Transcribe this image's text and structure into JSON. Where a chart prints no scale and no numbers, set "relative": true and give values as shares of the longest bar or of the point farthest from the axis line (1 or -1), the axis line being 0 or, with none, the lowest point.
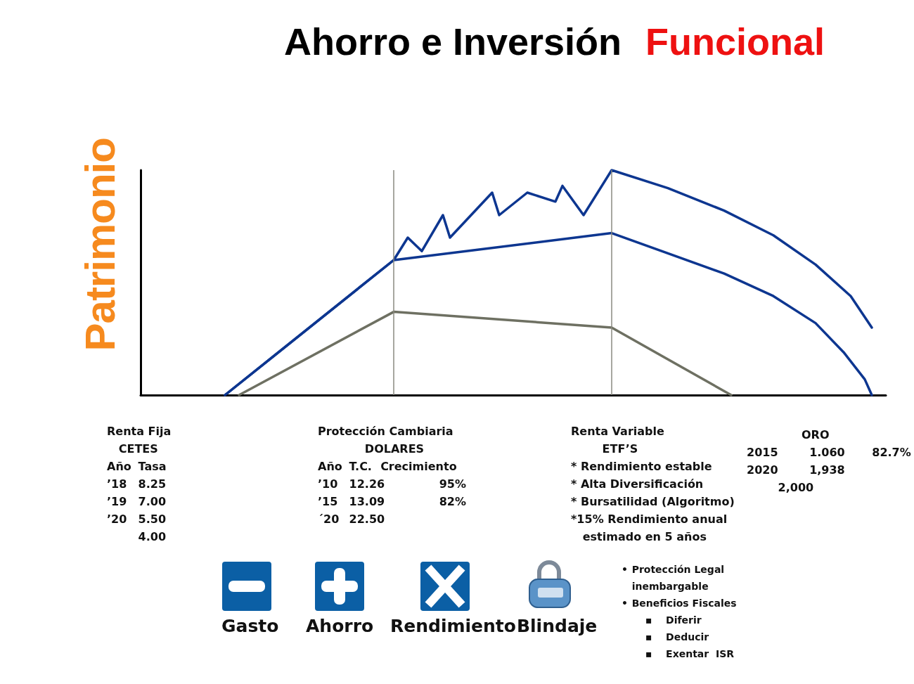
{
  "chart_data": {
    "type": "line",
    "title": "Ahorro e Inversión",
    "subtitle": "Funcional",
    "ylabel": "Patrimonio",
    "relative": true,
    "marker": "none",
    "line_style": "solid",
    "categories": [
      null,
      null,
      null,
      null,
      null,
      null,
      null,
      null,
      null,
      null,
      null,
      null,
      null,
      null,
      null,
      null,
      null,
      null,
      null,
      null,
      null,
      null,
      null,
      null,
      null,
      null,
      null,
      null,
      null,
      null,
      null,
      null,
      null,
      null,
      null,
      null,
      null,
      null,
      null,
      null,
      null,
      null,
      null,
      null,
      null,
      null,
      null,
      null,
      null,
      null,
      null,
      null,
      null,
      null,
      null,
      null,
      null,
      null,
      null,
      null,
      null,
      null,
      null,
      null,
      null,
      null,
      null,
      null,
      null,
      null,
      null,
      null,
      null,
      null,
      null,
      null,
      null,
      null,
      null,
      null,
      null,
      null,
      null,
      null,
      null,
      null,
      null,
      null,
      null,
      null,
      null,
      null,
      null,
      null,
      null,
      null,
      null,
      null,
      null,
      null,
      null,
      null,
      null,
      null,
      null,
      null,
      null
    ],
    "series": [
      {
        "color": "#0d3690",
        "values": [
          null,
          null,
          null,
          null,
          null,
          null,
          null,
          null,
          null,
          null,
          null,
          null,
          0,
          null,
          null,
          null,
          null,
          null,
          null,
          null,
          null,
          null,
          null,
          null,
          null,
          null,
          null,
          null,
          null,
          null,
          null,
          null,
          null,
          null,
          null,
          null,
          0.6,
          null,
          0.7,
          null,
          0.64,
          null,
          null,
          0.8,
          0.7,
          null,
          null,
          null,
          null,
          null,
          0.9,
          0.8,
          null,
          null,
          null,
          0.9,
          null,
          null,
          null,
          0.86,
          0.93,
          null,
          null,
          0.8,
          null,
          null,
          null,
          1,
          null,
          null,
          null,
          null,
          null,
          null,
          null,
          0.92,
          null,
          null,
          null,
          null,
          null,
          null,
          null,
          0.82,
          null,
          null,
          null,
          null,
          null,
          null,
          0.71,
          null,
          null,
          null,
          null,
          null,
          0.58,
          null,
          null,
          null,
          null,
          0.44,
          null,
          null,
          0.3,
          null,
          null
        ]
      },
      {
        "color": "#0d3690",
        "values": [
          null,
          null,
          null,
          null,
          null,
          null,
          null,
          null,
          null,
          null,
          null,
          null,
          0,
          null,
          null,
          null,
          null,
          null,
          null,
          null,
          null,
          null,
          null,
          null,
          null,
          null,
          null,
          null,
          null,
          null,
          null,
          null,
          null,
          null,
          null,
          null,
          0.6,
          null,
          null,
          null,
          null,
          null,
          null,
          null,
          null,
          null,
          null,
          null,
          null,
          null,
          null,
          null,
          null,
          null,
          null,
          null,
          null,
          null,
          null,
          null,
          null,
          null,
          null,
          null,
          null,
          null,
          null,
          0.72,
          null,
          null,
          null,
          null,
          null,
          null,
          null,
          0.63,
          null,
          null,
          null,
          null,
          null,
          null,
          null,
          0.54,
          null,
          null,
          null,
          null,
          null,
          null,
          0.44,
          null,
          null,
          null,
          null,
          null,
          0.32,
          null,
          null,
          null,
          0.19,
          null,
          null,
          0.07,
          0,
          null,
          null
        ]
      },
      {
        "color": "#6e7062",
        "values": [
          null,
          null,
          null,
          null,
          null,
          null,
          null,
          null,
          null,
          null,
          null,
          null,
          null,
          null,
          0,
          null,
          null,
          null,
          null,
          null,
          null,
          null,
          null,
          null,
          null,
          null,
          null,
          null,
          null,
          null,
          null,
          null,
          null,
          null,
          null,
          null,
          0.37,
          null,
          null,
          null,
          null,
          null,
          null,
          null,
          null,
          null,
          null,
          null,
          null,
          null,
          null,
          null,
          null,
          null,
          null,
          null,
          null,
          null,
          null,
          null,
          null,
          null,
          null,
          null,
          null,
          null,
          null,
          0.3,
          null,
          null,
          null,
          null,
          null,
          null,
          null,
          null,
          null,
          null,
          null,
          null,
          null,
          null,
          null,
          null,
          0,
          null,
          null,
          null,
          null,
          null,
          null,
          null,
          null,
          null,
          null,
          null,
          null,
          null,
          null,
          null,
          null,
          null,
          null,
          null,
          null,
          null,
          null
        ]
      }
    ],
    "annotations": [
      "Renta Fija\n   CETES\nAño\tTasa\n’18\t8.25\n’19\t7.00\n’20\t5.50\n\t4.00",
      "Protección Cambiaria\n            DOLARES\nAño\tT.C.\tCrecimiento\n’10\t12.26\t       95%\n’15\t13.09\t       82%\n´20\t22.50",
      "Renta Variable\n        ETF’S\n* Rendimiento estable\n* Alta Diversificación\n* Bursatilidad (Algoritmo)\n*15% Rendimiento anual\n   estimado en 5 años",
      "\t      ORO\n2015\t1.060\t82.7%\n2020\t1,938\n\t2,000",
      "•\tProtección Legal\n\tinembargable\n•\tBeneficios Fiscales\n\t    ▪    Diferir\n\t    ▪    Deducir\n\t    ▪    Exentar  ISR",
      "Gasto",
      "Ahorro",
      "Rendimiento",
      "Blindaje"
    ]
  }
}
